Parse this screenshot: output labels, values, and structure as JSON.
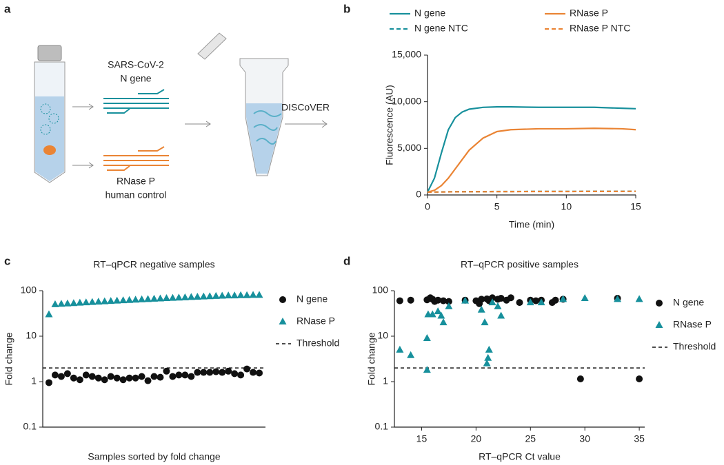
{
  "panels": [
    "a",
    "b",
    "c",
    "d"
  ],
  "diagram": {
    "n_gene_label": [
      "SARS-CoV-2",
      "N gene"
    ],
    "rnase_label": [
      "RNase P",
      "human control"
    ],
    "method": "DISCoVER"
  },
  "chart_data": [
    {
      "type": "line",
      "xlabel": "Time (min)",
      "ylabel": "Fluorescence (AU)",
      "legend": "top",
      "x": [
        0,
        0.5,
        1,
        1.5,
        2,
        2.5,
        3,
        4,
        5,
        6,
        8,
        10,
        12,
        14,
        15
      ],
      "series": [
        {
          "name": "N gene",
          "color": "#17909c",
          "dash": false,
          "values": [
            300,
            1800,
            4500,
            7000,
            8300,
            8900,
            9200,
            9400,
            9450,
            9450,
            9400,
            9400,
            9400,
            9300,
            9250
          ]
        },
        {
          "name": "N gene NTC",
          "color": "#17909c",
          "dash": true,
          "values": [
            300,
            320,
            330,
            340,
            350,
            350,
            360,
            360,
            370,
            370,
            380,
            380,
            390,
            390,
            400
          ]
        },
        {
          "name": "RNase P",
          "color": "#ea8434",
          "dash": false,
          "values": [
            300,
            500,
            1000,
            1800,
            2800,
            3800,
            4800,
            6100,
            6800,
            7000,
            7100,
            7100,
            7150,
            7100,
            7000
          ]
        },
        {
          "name": "RNase P NTC",
          "color": "#ea8434",
          "dash": true,
          "values": [
            300,
            310,
            320,
            330,
            340,
            340,
            350,
            350,
            360,
            360,
            370,
            370,
            380,
            380,
            390
          ]
        }
      ],
      "xlim": [
        0,
        15
      ],
      "xticks": [
        0,
        5,
        10,
        15
      ],
      "ylim": [
        0,
        15000
      ],
      "yticks": [
        0,
        {
          "value": 5000,
          "label": "5,000"
        },
        {
          "value": 10000,
          "label": "10,000"
        },
        {
          "value": 15000,
          "label": "15,000"
        }
      ]
    },
    {
      "type": "scatter",
      "title": "RT–qPCR negative samples",
      "xlabel": "Samples sorted by fold change",
      "ylabel": "Fold change",
      "legend": "right",
      "log_y": true,
      "x": [
        1,
        2,
        3,
        4,
        5,
        6,
        7,
        8,
        9,
        10,
        11,
        12,
        13,
        14,
        15,
        16,
        17,
        18,
        19,
        20,
        21,
        22,
        23,
        24,
        25,
        26,
        27,
        28,
        29,
        30,
        31,
        32,
        33,
        34,
        35
      ],
      "series": [
        {
          "name": "N gene",
          "color": "#111111",
          "marker": "circle",
          "values": [
            0.95,
            1.4,
            1.3,
            1.5,
            1.2,
            1.1,
            1.4,
            1.3,
            1.2,
            1.1,
            1.3,
            1.2,
            1.1,
            1.2,
            1.2,
            1.3,
            1.05,
            1.3,
            1.25,
            1.7,
            1.3,
            1.4,
            1.4,
            1.3,
            1.6,
            1.6,
            1.6,
            1.65,
            1.6,
            1.7,
            1.5,
            1.4,
            1.9,
            1.6,
            1.55
          ]
        },
        {
          "name": "RNase P",
          "color": "#17909c",
          "marker": "triangle",
          "values": [
            30,
            50,
            51,
            52,
            53,
            54,
            55,
            56,
            57,
            58,
            59,
            60,
            61,
            62,
            63,
            64,
            65,
            66,
            67,
            68,
            69,
            70,
            71,
            72,
            73,
            74,
            75,
            76,
            77,
            78,
            78,
            79,
            79,
            80,
            80
          ]
        }
      ],
      "threshold": {
        "name": "Threshold",
        "value": 2,
        "color": "#111111"
      },
      "xlim": [
        0,
        36
      ],
      "ylim": [
        0.1,
        100
      ],
      "yticks": [
        0.1,
        1,
        10,
        100
      ]
    },
    {
      "type": "scatter",
      "title": "RT–qPCR positive samples",
      "xlabel": "RT–qPCR Ct value",
      "ylabel": "Fold change",
      "legend": "right",
      "log_y": true,
      "series": [
        {
          "name": "N gene",
          "color": "#111111",
          "marker": "circle",
          "x": [
            13,
            14,
            15.5,
            15.8,
            16,
            16.2,
            16.5,
            17,
            17.5,
            19,
            20,
            20.3,
            20.5,
            21,
            21.2,
            21.5,
            22,
            22.3,
            22.8,
            23.2,
            24,
            25,
            25.5,
            26,
            27,
            27.3,
            28,
            29.6,
            33,
            35
          ],
          "values": [
            60,
            62,
            63,
            70,
            65,
            58,
            62,
            60,
            58,
            62,
            60,
            52,
            65,
            66,
            60,
            70,
            65,
            68,
            62,
            70,
            55,
            62,
            60,
            62,
            55,
            62,
            65,
            1.15,
            68,
            1.15
          ]
        },
        {
          "name": "RNase P",
          "color": "#17909c",
          "marker": "triangle",
          "x": [
            13,
            14,
            15.5,
            15.5,
            15.6,
            16,
            16.5,
            16.8,
            17,
            17.5,
            19,
            20.5,
            20.8,
            21,
            21.1,
            21.2,
            21.5,
            22,
            22.3,
            25,
            26,
            28,
            30,
            33,
            35
          ],
          "values": [
            5,
            3.8,
            1.8,
            9,
            30,
            30,
            35,
            28,
            20,
            45,
            60,
            38,
            20,
            2.5,
            3.3,
            5,
            55,
            45,
            28,
            55,
            55,
            65,
            68,
            65,
            65
          ]
        }
      ],
      "threshold": {
        "name": "Threshold",
        "value": 2,
        "color": "#111111"
      },
      "xlim": [
        12.5,
        35.5
      ],
      "xticks": [
        15,
        20,
        25,
        30,
        35
      ],
      "ylim": [
        0.1,
        100
      ],
      "yticks": [
        0.1,
        1,
        10,
        100
      ]
    }
  ]
}
